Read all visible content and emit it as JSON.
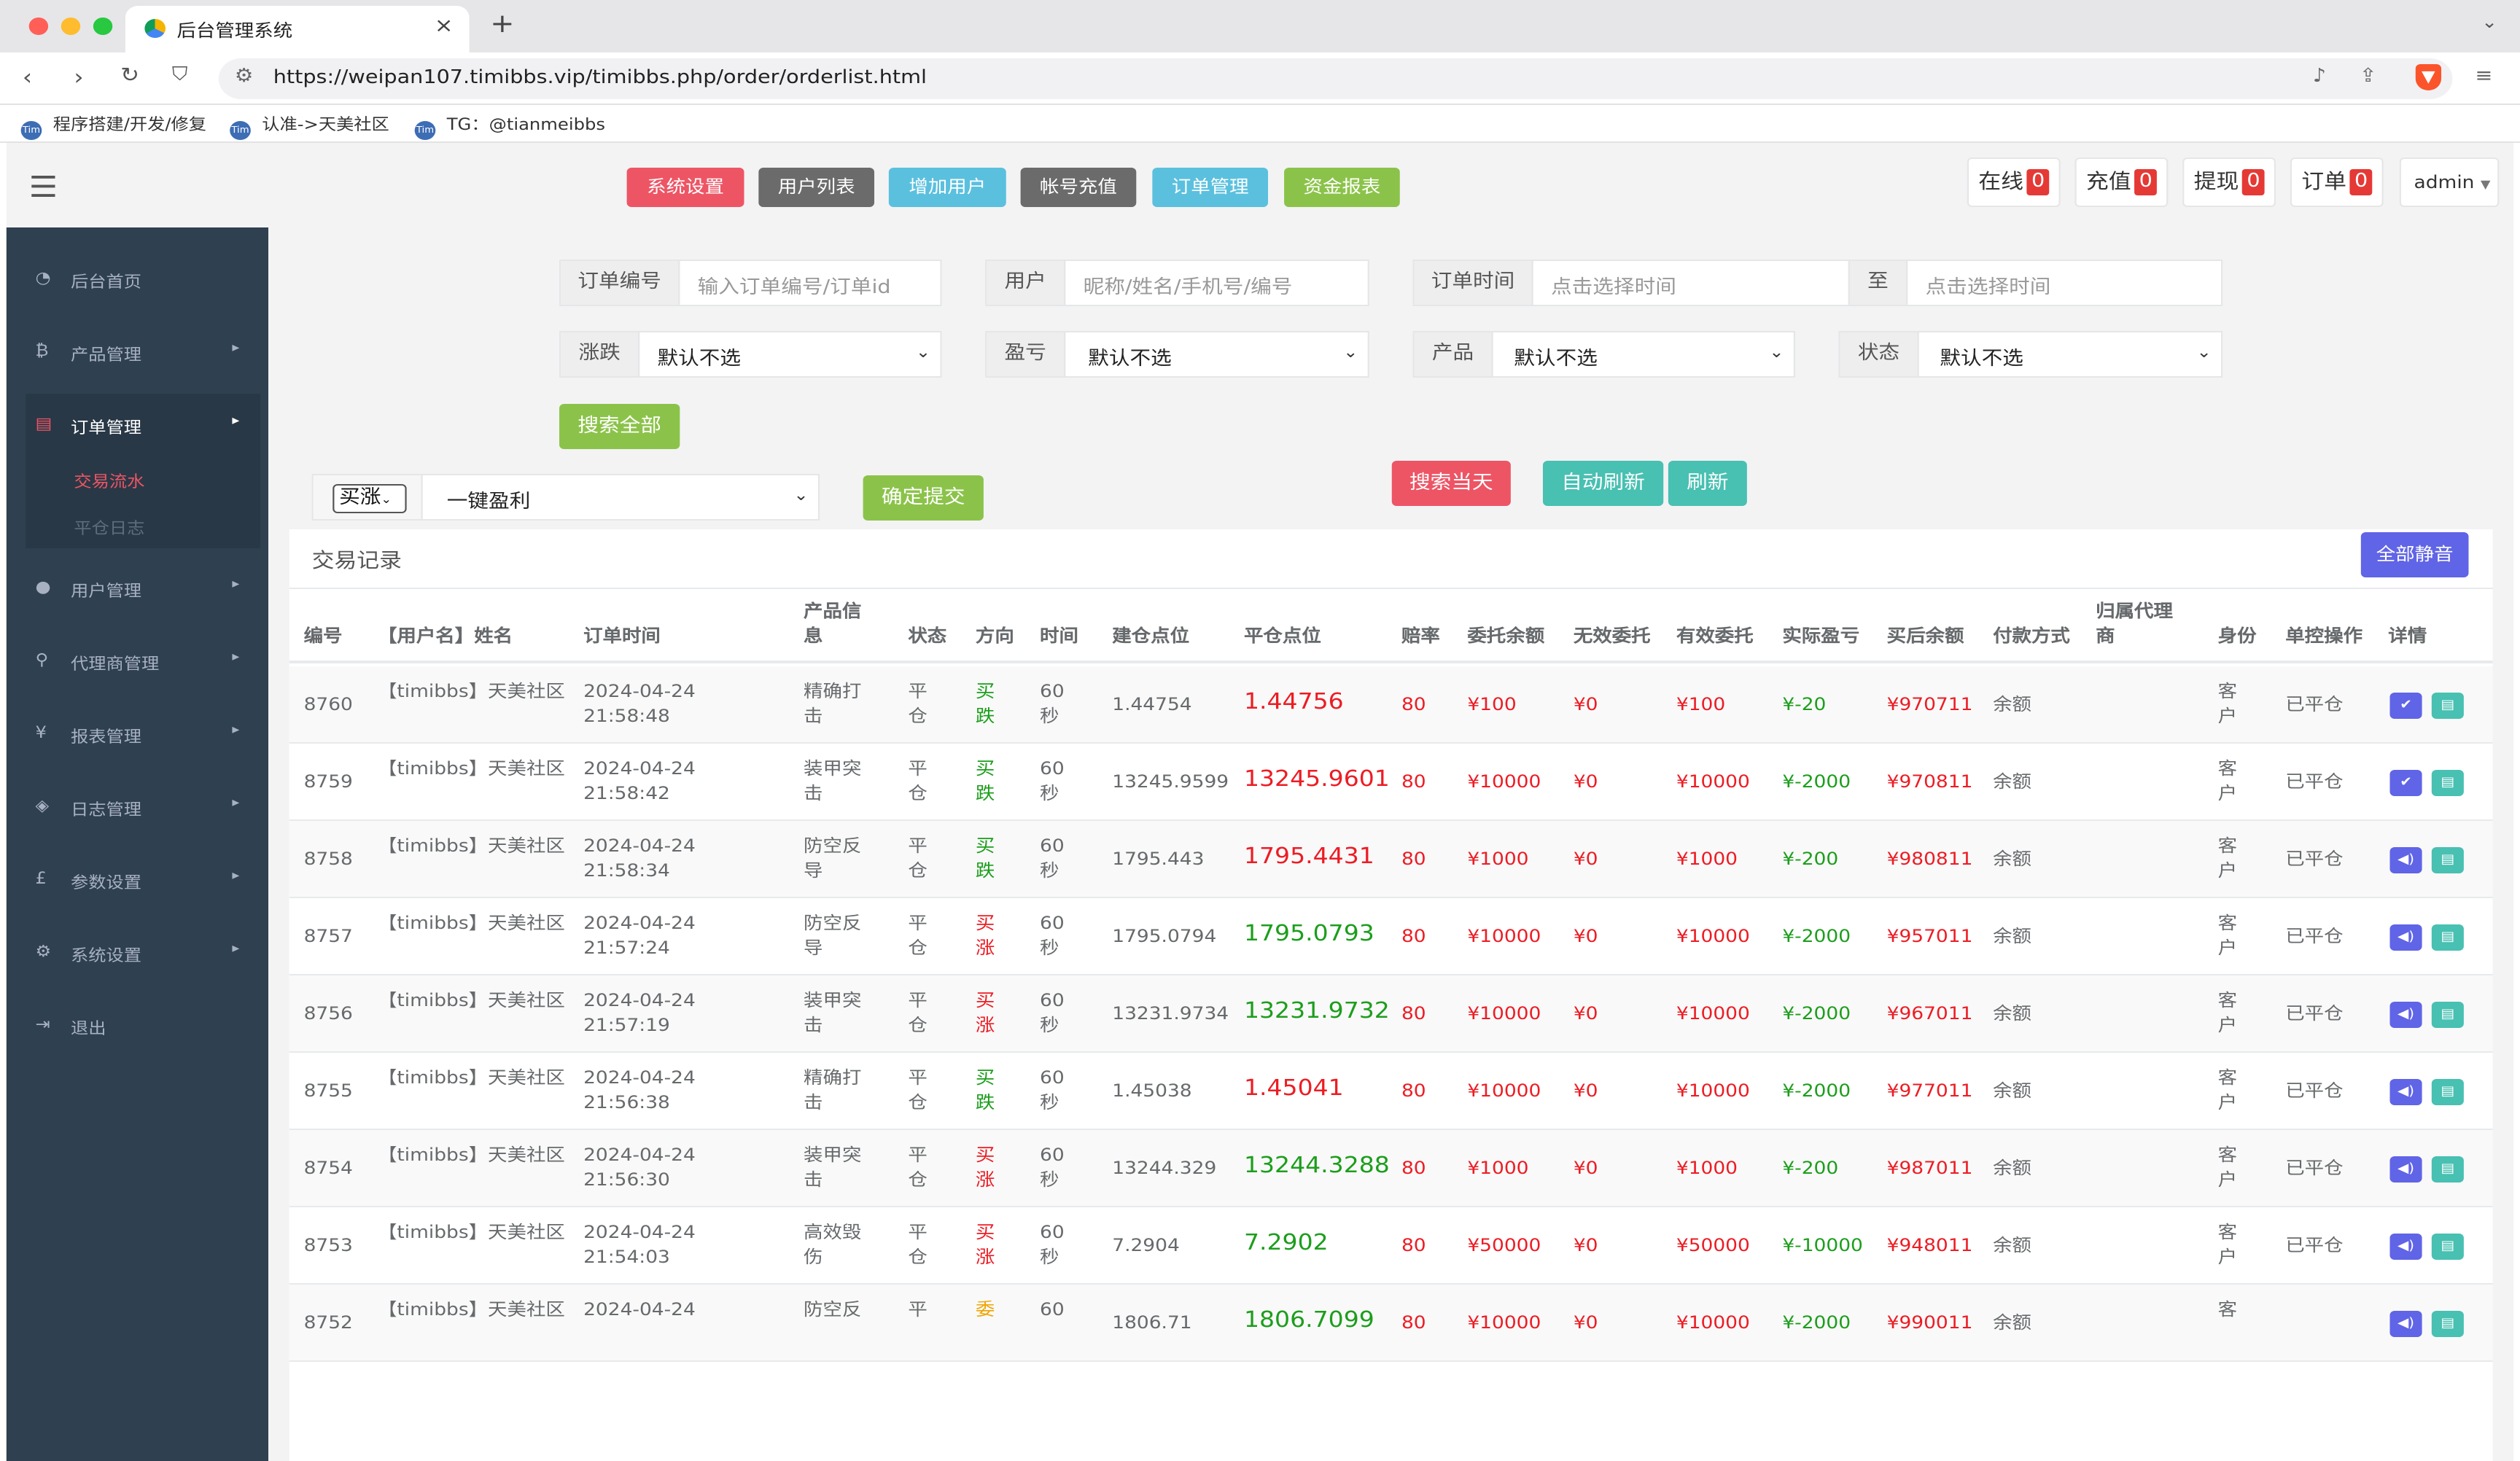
{
  "browser": {
    "tab_title": "后台管理系统",
    "url": "https://weipan107.timibbs.vip/timibbs.php/order/orderlist.html",
    "bookmarks": [
      "程序搭建/开发/修复",
      "认准->天美社区",
      "TG：@tianmeibbs"
    ]
  },
  "header": {
    "buttons": [
      {
        "label": "系统设置",
        "color": "#ed5565"
      },
      {
        "label": "用户列表",
        "color": "#6b6b6b"
      },
      {
        "label": "增加用户",
        "color": "#5bc0de"
      },
      {
        "label": "帐号充值",
        "color": "#6b6b6b"
      },
      {
        "label": "订单管理",
        "color": "#5bc0de"
      },
      {
        "label": "资金报表",
        "color": "#8bc34a"
      }
    ],
    "stats": [
      {
        "label": "在线",
        "count": "0"
      },
      {
        "label": "充值",
        "count": "0"
      },
      {
        "label": "提现",
        "count": "0"
      },
      {
        "label": "订单",
        "count": "0"
      }
    ],
    "user": "admin"
  },
  "sidebar": {
    "items": [
      {
        "icon": "dashboard-icon",
        "label": "后台首页"
      },
      {
        "icon": "bitcoin-icon",
        "label": "产品管理"
      },
      {
        "icon": "copy-icon",
        "label": "订单管理"
      },
      {
        "icon": "user-icon",
        "label": "用户管理"
      },
      {
        "icon": "sitemap-icon",
        "label": "代理商管理"
      },
      {
        "icon": "yen-icon",
        "label": "报表管理"
      },
      {
        "icon": "tag-icon",
        "label": "日志管理"
      },
      {
        "icon": "pound-icon",
        "label": "参数设置"
      },
      {
        "icon": "cogs-icon",
        "label": "系统设置"
      },
      {
        "icon": "logout-icon",
        "label": "退出"
      }
    ],
    "sub_items": [
      "交易流水",
      "平仓日志"
    ]
  },
  "filters": {
    "order_no_label": "订单编号",
    "order_no_placeholder": "输入订单编号/订单id",
    "user_label": "用户",
    "user_placeholder": "昵称/姓名/手机号/编号",
    "time_label": "订单时间",
    "time_placeholder": "点击选择时间",
    "to_label": "至",
    "time_end_placeholder": "点击选择时间",
    "rise_label": "涨跌",
    "pnl_label": "盈亏",
    "product_label": "产品",
    "status_label": "状态",
    "default_option": "默认不选",
    "search_all": "搜索全部"
  },
  "actions": {
    "direction_value": "买涨",
    "profit_select": "一键盈利",
    "confirm": "确定提交",
    "search_today": "搜索当天",
    "auto_refresh": "自动刷新",
    "refresh": "刷新"
  },
  "table": {
    "title": "交易记录",
    "mute_all": "全部静音",
    "headers": [
      "编号",
      "【用户名】姓名",
      "订单时间",
      "产品信息",
      "状态",
      "方向",
      "时间",
      "建仓点位",
      "平仓点位",
      "赔率",
      "委托余额",
      "无效委托",
      "有效委托",
      "实际盈亏",
      "买后余额",
      "付款方式",
      "归属代理商",
      "身份",
      "单控操作",
      "详情"
    ],
    "rows": [
      {
        "id": "8760",
        "user": "【timibbs】天美社区",
        "time": "2024-04-24 21:58:48",
        "product": "精确打击",
        "status": "平仓",
        "direction": "买跌",
        "dir_color": "green",
        "duration": "60秒",
        "open": "1.44754",
        "close": "1.44756",
        "close_color": "red",
        "odds": "80",
        "entrust": "¥100",
        "invalid": "¥0",
        "valid": "¥100",
        "pnl": "¥-20",
        "balance": "¥970711",
        "pay": "余额",
        "agent": "",
        "identity": "客户",
        "control": "已平仓",
        "icon1": "check-icon",
        "icon1_color": "#6064e6"
      },
      {
        "id": "8759",
        "user": "【timibbs】天美社区",
        "time": "2024-04-24 21:58:42",
        "product": "装甲突击",
        "status": "平仓",
        "direction": "买跌",
        "dir_color": "green",
        "duration": "60秒",
        "open": "13245.9599",
        "close": "13245.9601",
        "close_color": "red",
        "odds": "80",
        "entrust": "¥10000",
        "invalid": "¥0",
        "valid": "¥10000",
        "pnl": "¥-2000",
        "balance": "¥970811",
        "pay": "余额",
        "agent": "",
        "identity": "客户",
        "control": "已平仓",
        "icon1": "check-icon",
        "icon1_color": "#6064e6"
      },
      {
        "id": "8758",
        "user": "【timibbs】天美社区",
        "time": "2024-04-24 21:58:34",
        "product": "防空反导",
        "status": "平仓",
        "direction": "买跌",
        "dir_color": "green",
        "duration": "60秒",
        "open": "1795.443",
        "close": "1795.4431",
        "close_color": "red",
        "odds": "80",
        "entrust": "¥1000",
        "invalid": "¥0",
        "valid": "¥1000",
        "pnl": "¥-200",
        "balance": "¥980811",
        "pay": "余额",
        "agent": "",
        "identity": "客户",
        "control": "已平仓",
        "icon1": "volume-icon",
        "icon1_color": "#6064e6"
      },
      {
        "id": "8757",
        "user": "【timibbs】天美社区",
        "time": "2024-04-24 21:57:24",
        "product": "防空反导",
        "status": "平仓",
        "direction": "买涨",
        "dir_color": "red",
        "duration": "60秒",
        "open": "1795.0794",
        "close": "1795.0793",
        "close_color": "green",
        "odds": "80",
        "entrust": "¥10000",
        "invalid": "¥0",
        "valid": "¥10000",
        "pnl": "¥-2000",
        "balance": "¥957011",
        "pay": "余额",
        "agent": "",
        "identity": "客户",
        "control": "已平仓",
        "icon1": "volume-icon",
        "icon1_color": "#6064e6"
      },
      {
        "id": "8756",
        "user": "【timibbs】天美社区",
        "time": "2024-04-24 21:57:19",
        "product": "装甲突击",
        "status": "平仓",
        "direction": "买涨",
        "dir_color": "red",
        "duration": "60秒",
        "open": "13231.9734",
        "close": "13231.9732",
        "close_color": "green",
        "odds": "80",
        "entrust": "¥10000",
        "invalid": "¥0",
        "valid": "¥10000",
        "pnl": "¥-2000",
        "balance": "¥967011",
        "pay": "余额",
        "agent": "",
        "identity": "客户",
        "control": "已平仓",
        "icon1": "volume-icon",
        "icon1_color": "#6064e6"
      },
      {
        "id": "8755",
        "user": "【timibbs】天美社区",
        "time": "2024-04-24 21:56:38",
        "product": "精确打击",
        "status": "平仓",
        "direction": "买跌",
        "dir_color": "green",
        "duration": "60秒",
        "open": "1.45038",
        "close": "1.45041",
        "close_color": "red",
        "odds": "80",
        "entrust": "¥10000",
        "invalid": "¥0",
        "valid": "¥10000",
        "pnl": "¥-2000",
        "balance": "¥977011",
        "pay": "余额",
        "agent": "",
        "identity": "客户",
        "control": "已平仓",
        "icon1": "volume-icon",
        "icon1_color": "#6064e6"
      },
      {
        "id": "8754",
        "user": "【timibbs】天美社区",
        "time": "2024-04-24 21:56:30",
        "product": "装甲突击",
        "status": "平仓",
        "direction": "买涨",
        "dir_color": "red",
        "duration": "60秒",
        "open": "13244.329",
        "close": "13244.3288",
        "close_color": "green",
        "odds": "80",
        "entrust": "¥1000",
        "invalid": "¥0",
        "valid": "¥1000",
        "pnl": "¥-200",
        "balance": "¥987011",
        "pay": "余额",
        "agent": "",
        "identity": "客户",
        "control": "已平仓",
        "icon1": "volume-icon",
        "icon1_color": "#6064e6"
      },
      {
        "id": "8753",
        "user": "【timibbs】天美社区",
        "time": "2024-04-24 21:54:03",
        "product": "高效毁伤",
        "status": "平仓",
        "direction": "买涨",
        "dir_color": "red",
        "duration": "60秒",
        "open": "7.2904",
        "close": "7.2902",
        "close_color": "green",
        "odds": "80",
        "entrust": "¥50000",
        "invalid": "¥0",
        "valid": "¥50000",
        "pnl": "¥-10000",
        "balance": "¥948011",
        "pay": "余额",
        "agent": "",
        "identity": "客户",
        "control": "已平仓",
        "icon1": "volume-icon",
        "icon1_color": "#6064e6"
      },
      {
        "id": "8752",
        "user": "【timibbs】天美社区",
        "time": "2024-04-24",
        "product": "防空反",
        "status": "平",
        "direction": "委",
        "dir_color": "orange",
        "duration": "60",
        "open": "1806.71",
        "close": "1806.7099",
        "close_color": "green",
        "odds": "80",
        "entrust": "¥10000",
        "invalid": "¥0",
        "valid": "¥10000",
        "pnl": "¥-2000",
        "balance": "¥990011",
        "pay": "余额",
        "agent": "",
        "identity": "客",
        "control": "",
        "icon1": "volume-icon",
        "icon1_color": "#6064e6"
      }
    ]
  }
}
